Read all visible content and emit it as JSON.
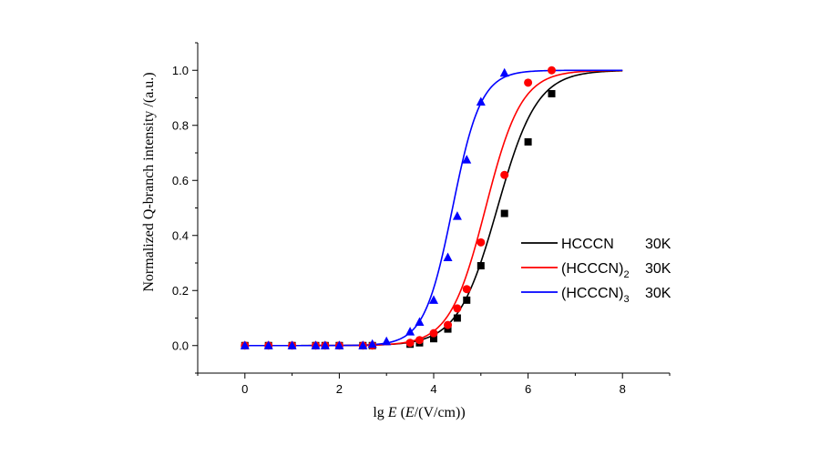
{
  "chart_data": {
    "type": "scatter",
    "xlabel_prefix": "lg ",
    "xlabel_var": "E",
    "xlabel_paren_open": "  (",
    "xlabel_paren_var": "E",
    "xlabel_units": "/(V/cm))",
    "ylabel": "Normalized Q-branch intensity /(a.u.)",
    "xlim": [
      -1,
      9
    ],
    "ylim": [
      -0.1,
      1.1
    ],
    "xticks": [
      0,
      2,
      4,
      6,
      8
    ],
    "xtick_labels": [
      "0",
      "2",
      "4",
      "6",
      "8"
    ],
    "yticks": [
      0.0,
      0.2,
      0.4,
      0.6,
      0.8,
      1.0
    ],
    "ytick_labels": [
      "0.0",
      "0.2",
      "0.4",
      "0.6",
      "0.8",
      "1.0"
    ],
    "legend_position": "right",
    "series": [
      {
        "name": "HCCCN",
        "name_sub": "",
        "temp": "30K",
        "color": "#000000",
        "marker": "square",
        "x": [
          0,
          0.5,
          1.0,
          1.5,
          1.7,
          2.0,
          2.5,
          2.7,
          3.5,
          3.7,
          4.0,
          4.3,
          4.5,
          4.7,
          5.0,
          5.5,
          6.0,
          6.5
        ],
        "y": [
          0.0,
          0.0,
          0.0,
          0.0,
          0.0,
          0.0,
          0.0,
          0.0,
          0.005,
          0.01,
          0.025,
          0.06,
          0.1,
          0.165,
          0.29,
          0.48,
          0.74,
          0.915
        ],
        "fit_center": 5.35,
        "fit_width": 0.42
      },
      {
        "name": "(HCCCN)",
        "name_sub": "2",
        "temp": "30K",
        "color": "#ff0000",
        "marker": "circle",
        "x": [
          0,
          0.5,
          1.0,
          1.5,
          1.7,
          2.0,
          2.5,
          2.7,
          3.5,
          3.7,
          4.0,
          4.3,
          4.5,
          4.7,
          5.0,
          5.5,
          6.0,
          6.5
        ],
        "y": [
          0.0,
          0.0,
          0.0,
          0.0,
          0.0,
          0.0,
          0.0,
          0.0,
          0.01,
          0.02,
          0.045,
          0.075,
          0.135,
          0.205,
          0.375,
          0.62,
          0.955,
          1.0
        ],
        "fit_center": 5.1,
        "fit_width": 0.38
      },
      {
        "name": "(HCCCN)",
        "name_sub": "3",
        "temp": "30K",
        "color": "#0000ff",
        "marker": "triangle",
        "x": [
          0,
          0.5,
          1.0,
          1.5,
          1.7,
          2.0,
          2.5,
          2.7,
          3.0,
          3.5,
          3.7,
          4.0,
          4.3,
          4.5,
          4.7,
          5.0,
          5.5
        ],
        "y": [
          0.0,
          0.0,
          0.0,
          0.0,
          0.0,
          0.0,
          0.0,
          0.005,
          0.015,
          0.05,
          0.085,
          0.165,
          0.32,
          0.47,
          0.675,
          0.885,
          0.99
        ],
        "fit_center": 4.4,
        "fit_width": 0.3
      }
    ]
  }
}
